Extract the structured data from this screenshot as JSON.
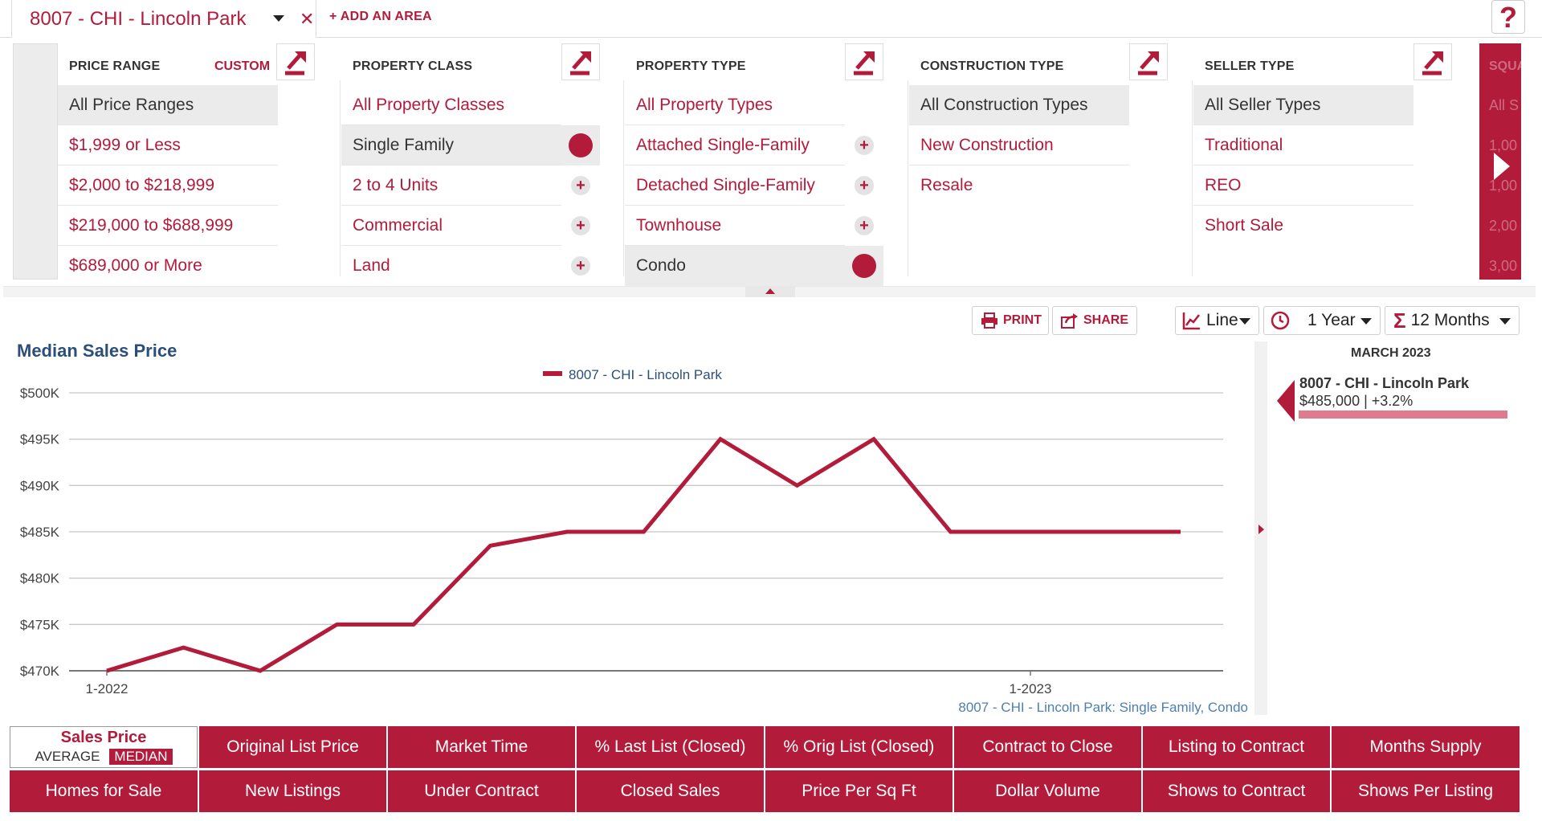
{
  "area_tab": {
    "label": "8007 - CHI - Lincoln Park",
    "close": "✕"
  },
  "add_area": "+ ADD AN AREA",
  "help": "?",
  "filters": {
    "price_range": {
      "title": "PRICE RANGE",
      "custom": "CUSTOM",
      "items": [
        "All Price Ranges",
        "$1,999 or Less",
        "$2,000 to $218,999",
        "$219,000 to $688,999",
        "$689,000 or More"
      ]
    },
    "property_class": {
      "title": "PROPERTY CLASS",
      "items": [
        "All Property Classes",
        "Single Family",
        "2 to 4 Units",
        "Commercial",
        "Land"
      ]
    },
    "property_type": {
      "title": "PROPERTY TYPE",
      "items": [
        "All Property Types",
        "Attached Single-Family",
        "Detached Single-Family",
        "Townhouse",
        "Condo"
      ]
    },
    "construction_type": {
      "title": "CONSTRUCTION TYPE",
      "items": [
        "All Construction Types",
        "New Construction",
        "Resale"
      ]
    },
    "seller_type": {
      "title": "SELLER TYPE",
      "items": [
        "All Seller Types",
        "Traditional",
        "REO",
        "Short Sale"
      ]
    },
    "square_feet": {
      "title": "SQUA",
      "items": [
        "All S",
        "1,00",
        "1,00",
        "2,00",
        "3,00"
      ]
    }
  },
  "toolbar": {
    "print": "PRINT",
    "share": "SHARE",
    "chart_type": "Line",
    "period": "1 Year",
    "rolling": "12 Months"
  },
  "chart_title": "Median Sales Price",
  "chart_data": {
    "type": "line",
    "title": "Median Sales Price",
    "series": [
      {
        "name": "8007 - CHI - Lincoln Park",
        "values": [
          470000,
          472500,
          470000,
          475000,
          475000,
          483500,
          485000,
          485000,
          495000,
          490000,
          495000,
          485000,
          485000,
          485000,
          485000
        ]
      }
    ],
    "x_tick_labels": [
      "1-2022",
      "1-2023"
    ],
    "y_tick_labels": [
      "$470K",
      "$475K",
      "$480K",
      "$485K",
      "$490K",
      "$495K",
      "$500K"
    ],
    "ylim": [
      470000,
      500000
    ],
    "grid": true,
    "legend_placement": "top-center",
    "footnote": "8007 - CHI - Lincoln Park: Single Family, Condo",
    "line_color": "#b31b3b"
  },
  "tooltip": {
    "month": "MARCH 2023",
    "area": "8007 - CHI - Lincoln Park",
    "value": "$485,000 | +3.2%"
  },
  "metrics": {
    "active": {
      "title": "Sales Price",
      "average": "AVERAGE",
      "median": "MEDIAN"
    },
    "row1": [
      "Original List Price",
      "Market Time",
      "% Last List (Closed)",
      "% Orig List (Closed)",
      "Contract to Close",
      "Listing to Contract",
      "Months Supply"
    ],
    "row2": [
      "Homes for Sale",
      "New Listings",
      "Under Contract",
      "Closed Sales",
      "Price Per Sq Ft",
      "Dollar Volume",
      "Shows to Contract",
      "Shows Per Listing"
    ]
  },
  "colors": {
    "accent": "#b31b3b",
    "title_blue": "#2b4f7a"
  }
}
